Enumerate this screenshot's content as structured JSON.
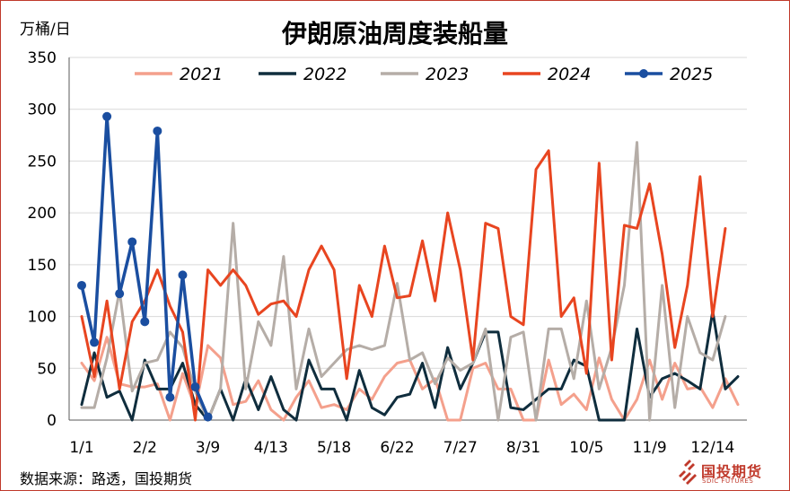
{
  "header": {
    "unit": "万桶/日",
    "title": "伊朗原油周度装船量"
  },
  "footer": {
    "source": "数据来源：路透，国投期货"
  },
  "logo": {
    "name": "国投期货",
    "sub": "SDIC FUTURES",
    "color": "#c0392b"
  },
  "chart_data": {
    "type": "line",
    "title": "伊朗原油周度装船量",
    "ylabel": "万桶/日",
    "ylim": [
      0,
      350
    ],
    "yticks": [
      0,
      50,
      100,
      150,
      200,
      250,
      300,
      350
    ],
    "x_tick_labels": [
      {
        "week": 0,
        "label": "1/1"
      },
      {
        "week": 5,
        "label": "2/2"
      },
      {
        "week": 10,
        "label": "3/9"
      },
      {
        "week": 15,
        "label": "4/13"
      },
      {
        "week": 20,
        "label": "5/18"
      },
      {
        "week": 25,
        "label": "6/22"
      },
      {
        "week": 30,
        "label": "7/27"
      },
      {
        "week": 35,
        "label": "8/31"
      },
      {
        "week": 40,
        "label": "10/5"
      },
      {
        "week": 45,
        "label": "11/9"
      },
      {
        "week": 50,
        "label": "12/14"
      }
    ],
    "legend_position": "top",
    "series": [
      {
        "name": "2021",
        "color": "#f4a08c",
        "values": [
          55,
          38,
          80,
          35,
          32,
          32,
          35,
          0,
          45,
          12,
          72,
          60,
          15,
          18,
          38,
          10,
          0,
          22,
          38,
          12,
          15,
          10,
          30,
          20,
          42,
          55,
          58,
          30,
          40,
          0,
          0,
          50,
          55,
          30,
          30,
          0,
          0,
          58,
          15,
          25,
          10,
          60,
          20,
          0,
          20,
          58,
          20,
          55,
          30,
          32,
          12,
          40,
          15
        ]
      },
      {
        "name": "2022",
        "color": "#0f2d3d",
        "values": [
          15,
          65,
          22,
          28,
          0,
          58,
          30,
          30,
          55,
          15,
          0,
          30,
          0,
          40,
          10,
          42,
          10,
          0,
          58,
          30,
          30,
          0,
          48,
          12,
          5,
          22,
          25,
          55,
          12,
          70,
          30,
          55,
          85,
          85,
          12,
          10,
          20,
          30,
          30,
          58,
          52,
          0,
          0,
          0,
          88,
          22,
          40,
          45,
          38,
          30,
          105,
          30,
          42
        ]
      },
      {
        "name": "2023",
        "color": "#b5ada7",
        "values": [
          12,
          12,
          60,
          125,
          28,
          55,
          58,
          85,
          70,
          28,
          0,
          30,
          190,
          30,
          95,
          72,
          158,
          30,
          88,
          42,
          55,
          68,
          72,
          68,
          72,
          132,
          58,
          65,
          35,
          60,
          48,
          55,
          88,
          0,
          80,
          85,
          0,
          88,
          88,
          40,
          115,
          30,
          70,
          130,
          268,
          0,
          130,
          12,
          100,
          65,
          58,
          100
        ]
      },
      {
        "name": "2024",
        "color": "#e84520",
        "values": [
          100,
          42,
          115,
          30,
          95,
          115,
          145,
          110,
          85,
          0,
          145,
          130,
          145,
          130,
          102,
          112,
          115,
          100,
          145,
          168,
          145,
          40,
          130,
          100,
          168,
          118,
          120,
          173,
          115,
          200,
          145,
          58,
          190,
          185,
          100,
          92,
          242,
          260,
          100,
          118,
          45,
          248,
          58,
          188,
          185,
          228,
          160,
          70,
          130,
          235,
          100,
          185
        ]
      },
      {
        "name": "2025",
        "color": "#1a4ea0",
        "values": [
          130,
          75,
          293,
          122,
          172,
          95,
          279,
          22,
          140,
          32,
          3
        ]
      }
    ]
  }
}
